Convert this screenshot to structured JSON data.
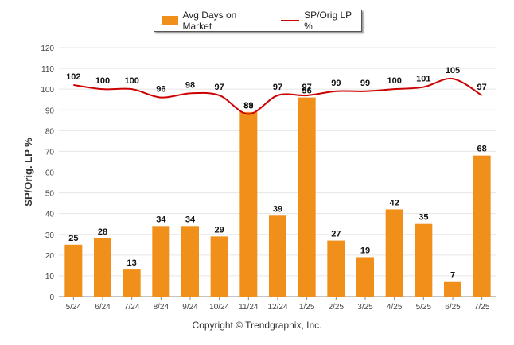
{
  "chart_data": {
    "type": "bar+line",
    "categories": [
      "5/24",
      "6/24",
      "7/24",
      "8/24",
      "9/24",
      "10/24",
      "11/24",
      "12/24",
      "1/25",
      "2/25",
      "3/25",
      "4/25",
      "5/25",
      "6/25",
      "7/25"
    ],
    "series": [
      {
        "name": "Avg Days on Market",
        "type": "bar",
        "color": "#f0901a",
        "values": [
          25,
          28,
          13,
          34,
          34,
          29,
          89,
          39,
          96,
          27,
          19,
          42,
          35,
          7,
          68
        ]
      },
      {
        "name": "SP/Orig LP %",
        "type": "line",
        "color": "#cc0000",
        "values": [
          102,
          100,
          100,
          96,
          98,
          97,
          88,
          97,
          97,
          99,
          99,
          100,
          101,
          105,
          97
        ]
      }
    ],
    "ylabel": "SP/Orig. LP %",
    "ylim": [
      0,
      120
    ],
    "yticks": [
      0,
      10,
      20,
      30,
      40,
      50,
      60,
      70,
      80,
      90,
      100,
      110,
      120
    ],
    "grid": true,
    "legend_position": "top-center"
  },
  "legend": {
    "bar_label": "Avg Days on Market",
    "line_label": "SP/Orig LP %"
  },
  "footer": {
    "copyright": "Copyright © Trendgraphix, Inc."
  }
}
